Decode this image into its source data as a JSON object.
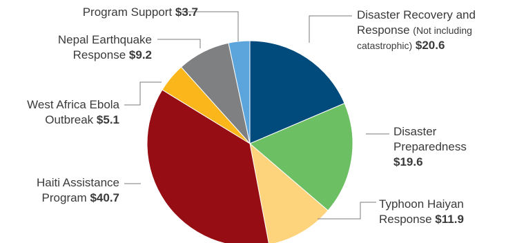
{
  "chart_data": {
    "type": "pie",
    "unit": "$",
    "slices": [
      {
        "key": "disaster_recovery",
        "label_lines": [
          "Disaster Recovery and",
          "Response"
        ],
        "note": "(Not including",
        "note2": "catastrophic)",
        "value": 20.6,
        "value_text": "$20.6",
        "color": "#004a7c"
      },
      {
        "key": "disaster_preparedness",
        "label_lines": [
          "Disaster",
          "Preparedness"
        ],
        "value": 19.6,
        "value_text": "$19.6",
        "color": "#6cbf63"
      },
      {
        "key": "typhoon_haiyan",
        "label_lines": [
          "Typhoon Haiyan",
          "Response"
        ],
        "value": 11.9,
        "value_text": "$11.9",
        "color": "#fdd47c"
      },
      {
        "key": "haiti_assistance",
        "label_lines": [
          "Haiti Assistance",
          "Program"
        ],
        "value": 40.7,
        "value_text": "$40.7",
        "color": "#960e13"
      },
      {
        "key": "west_africa_ebola",
        "label_lines": [
          "West Africa Ebola",
          "Outbreak"
        ],
        "value": 5.1,
        "value_text": "$5.1",
        "color": "#fbb61b"
      },
      {
        "key": "nepal_earthquake",
        "label_lines": [
          "Nepal Earthquake",
          "Response"
        ],
        "value": 9.2,
        "value_text": "$9.2",
        "color": "#7f8082"
      },
      {
        "key": "program_support",
        "label_lines": [
          "Program Support"
        ],
        "value": 3.7,
        "value_text": "$3.7",
        "color": "#5ca4dc"
      }
    ]
  }
}
